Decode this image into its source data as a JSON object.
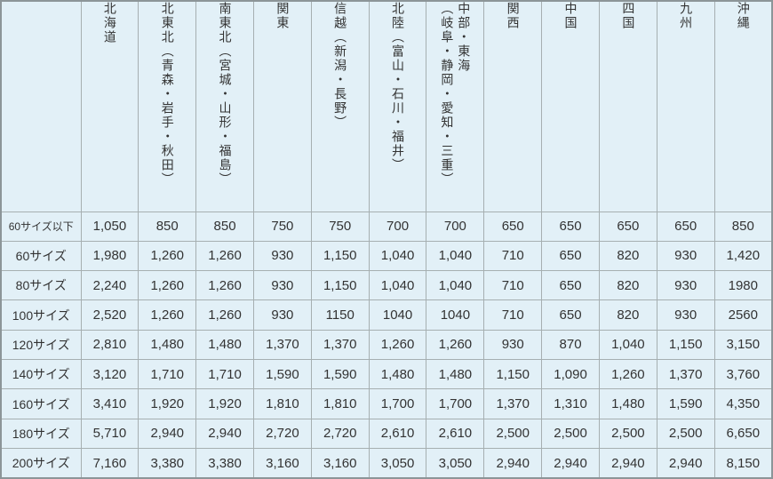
{
  "colors": {
    "cell_background": "#e2f0f7",
    "grid_line": "#a6afb1",
    "outer_border": "#8c9598",
    "text": "#333333"
  },
  "chart_data": {
    "type": "table",
    "title": "",
    "corner_label": "",
    "columns": [
      "北海道",
      "北東北（青森・岩手・秋田）",
      "南東北（宮城・山形・福島）",
      "関東",
      "信越（新潟・長野）",
      "北陸（富山・石川・福井）",
      "中部・東海\n（岐阜・静岡・愛知・三重）",
      "関西",
      "中国",
      "四国",
      "九州",
      "沖縄"
    ],
    "rows": [
      {
        "label": "60サイズ以下",
        "values": [
          "1,050",
          "850",
          "850",
          "750",
          "750",
          "700",
          "700",
          "650",
          "650",
          "650",
          "650",
          "850"
        ]
      },
      {
        "label": "60サイズ",
        "values": [
          "1,980",
          "1,260",
          "1,260",
          "930",
          "1,150",
          "1,040",
          "1,040",
          "710",
          "650",
          "820",
          "930",
          "1,420"
        ]
      },
      {
        "label": "80サイズ",
        "values": [
          "2,240",
          "1,260",
          "1,260",
          "930",
          "1,150",
          "1,040",
          "1,040",
          "710",
          "650",
          "820",
          "930",
          "1980"
        ]
      },
      {
        "label": "100サイズ",
        "values": [
          "2,520",
          "1,260",
          "1,260",
          "930",
          "1150",
          "1040",
          "1040",
          "710",
          "650",
          "820",
          "930",
          "2560"
        ]
      },
      {
        "label": "120サイズ",
        "values": [
          "2,810",
          "1,480",
          "1,480",
          "1,370",
          "1,370",
          "1,260",
          "1,260",
          "930",
          "870",
          "1,040",
          "1,150",
          "3,150"
        ]
      },
      {
        "label": "140サイズ",
        "values": [
          "3,120",
          "1,710",
          "1,710",
          "1,590",
          "1,590",
          "1,480",
          "1,480",
          "1,150",
          "1,090",
          "1,260",
          "1,370",
          "3,760"
        ]
      },
      {
        "label": "160サイズ",
        "values": [
          "3,410",
          "1,920",
          "1,920",
          "1,810",
          "1,810",
          "1,700",
          "1,700",
          "1,370",
          "1,310",
          "1,480",
          "1,590",
          "4,350"
        ]
      },
      {
        "label": "180サイズ",
        "values": [
          "5,710",
          "2,940",
          "2,940",
          "2,720",
          "2,720",
          "2,610",
          "2,610",
          "2,500",
          "2,500",
          "2,500",
          "2,500",
          "6,650"
        ]
      },
      {
        "label": "200サイズ",
        "values": [
          "7,160",
          "3,380",
          "3,380",
          "3,160",
          "3,160",
          "3,050",
          "3,050",
          "2,940",
          "2,940",
          "2,940",
          "2,940",
          "8,150"
        ]
      }
    ]
  }
}
